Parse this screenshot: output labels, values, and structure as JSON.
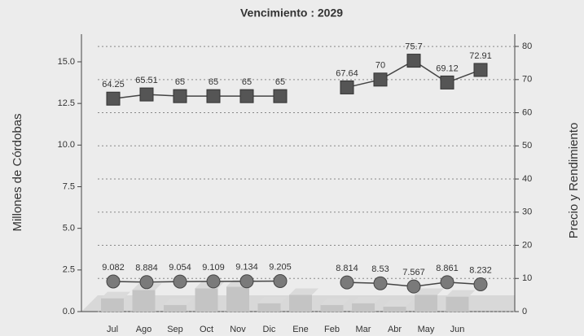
{
  "chart_data": {
    "type": "bar-line",
    "title": "Vencimiento : 2029",
    "ylabel": "Millones de Córdobas",
    "y2label": "Precio y Rendimiento",
    "categories": [
      "Jul",
      "Ago",
      "Sep",
      "Oct",
      "Nov",
      "Dic",
      "Ene",
      "Feb",
      "Mar",
      "Abr",
      "May",
      "Jun"
    ],
    "series": [
      {
        "type": "bar",
        "color": "#c4c4c4",
        "values": [
          0.8,
          1.3,
          0.4,
          1.4,
          1.5,
          0.5,
          1.0,
          0.4,
          0.5,
          0.3,
          1.0,
          0.9
        ]
      },
      {
        "type": "line",
        "axis": "y2",
        "marker": "square",
        "color": "#555555",
        "values": [
          64.25,
          65.51,
          65,
          65,
          65,
          65,
          null,
          67.64,
          70,
          75.7,
          69.12,
          72.91
        ]
      },
      {
        "type": "line",
        "axis": "y2",
        "marker": "circle",
        "color": "#7a7a7a",
        "values": [
          9.082,
          8.884,
          9.054,
          9.109,
          9.134,
          9.205,
          null,
          8.814,
          8.53,
          7.567,
          8.861,
          8.232
        ]
      }
    ],
    "ylim": [
      0,
      16.66
    ],
    "yticks": [
      {
        "value": 0,
        "label": "0.0"
      },
      {
        "value": 2.5,
        "label": "2.5"
      },
      {
        "value": 5,
        "label": "5.0"
      },
      {
        "value": 7.5,
        "label": "7.5"
      },
      {
        "value": 10,
        "label": "10.0"
      },
      {
        "value": 12.5,
        "label": "12.5"
      },
      {
        "value": 15,
        "label": "15.0"
      }
    ],
    "y2lim": [
      0,
      83.7
    ],
    "y2ticks": [
      0,
      10,
      20,
      30,
      40,
      50,
      60,
      70,
      80
    ],
    "grid": true
  }
}
